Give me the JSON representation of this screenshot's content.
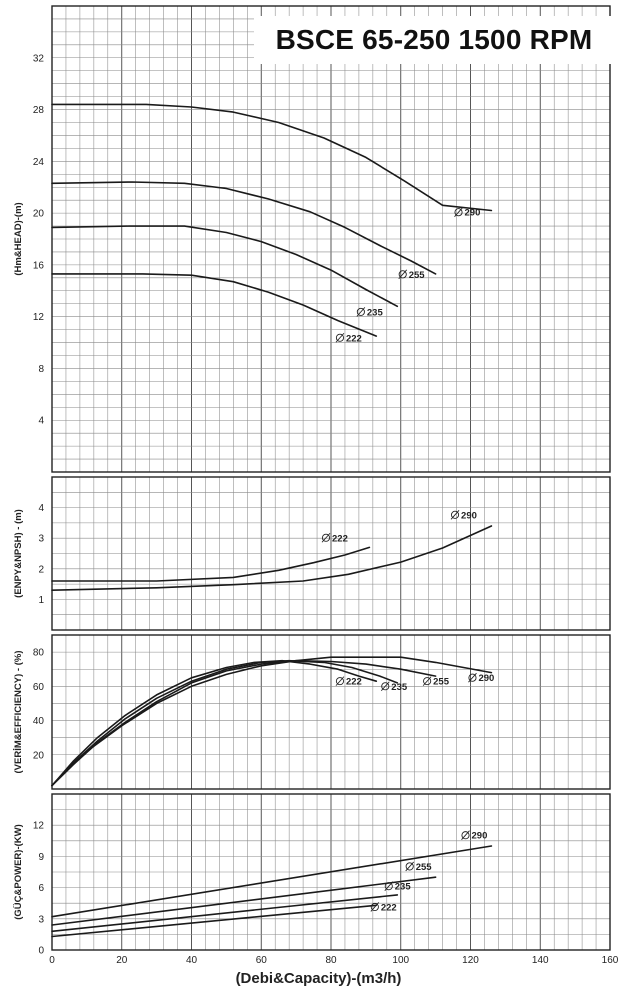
{
  "title": "BSCE 65-250 1500 RPM",
  "xlabel": "(Debi&Capacity)-(m3/h)",
  "chart_data": [
    {
      "type": "line",
      "id": "head",
      "ylabel": "(Hm&HEAD)-(m)",
      "xlim": [
        0,
        160
      ],
      "ylim": [
        0,
        36
      ],
      "xticks": [
        0,
        20,
        40,
        60,
        80,
        100,
        120,
        140,
        160
      ],
      "yticks": [
        4,
        8,
        12,
        16,
        20,
        24,
        28,
        32
      ],
      "grid": true,
      "series": [
        {
          "name": "Ø 290",
          "label": "290",
          "points": [
            [
              0,
              28.4
            ],
            [
              27,
              28.4
            ],
            [
              40,
              28.2
            ],
            [
              52,
              27.8
            ],
            [
              65,
              27.0
            ],
            [
              78,
              25.8
            ],
            [
              90,
              24.3
            ],
            [
              101,
              22.5
            ],
            [
              112,
              20.6
            ],
            [
              126,
              20.2
            ]
          ]
        },
        {
          "name": "Ø 255",
          "label": "255",
          "points": [
            [
              0,
              22.3
            ],
            [
              23,
              22.4
            ],
            [
              38,
              22.3
            ],
            [
              50,
              21.9
            ],
            [
              62,
              21.1
            ],
            [
              74,
              20.1
            ],
            [
              84,
              18.9
            ],
            [
              94,
              17.5
            ],
            [
              103,
              16.3
            ],
            [
              110,
              15.3
            ]
          ]
        },
        {
          "name": "Ø 235",
          "label": "235",
          "points": [
            [
              0,
              18.9
            ],
            [
              22,
              19.0
            ],
            [
              38,
              19.0
            ],
            [
              50,
              18.5
            ],
            [
              60,
              17.8
            ],
            [
              70,
              16.8
            ],
            [
              80,
              15.6
            ],
            [
              90,
              14.1
            ],
            [
              99,
              12.8
            ]
          ]
        },
        {
          "name": "Ø 222",
          "label": "222",
          "points": [
            [
              0,
              15.3
            ],
            [
              26,
              15.3
            ],
            [
              40,
              15.2
            ],
            [
              52,
              14.7
            ],
            [
              62,
              13.9
            ],
            [
              72,
              12.9
            ],
            [
              82,
              11.7
            ],
            [
              93,
              10.5
            ]
          ]
        }
      ],
      "annotations": [
        {
          "text": "290",
          "x": 118,
          "y": 19.8
        },
        {
          "text": "255",
          "x": 102,
          "y": 15.0
        },
        {
          "text": "235",
          "x": 90,
          "y": 12.1
        },
        {
          "text": "222",
          "x": 84,
          "y": 10.1
        }
      ]
    },
    {
      "type": "line",
      "id": "npsh",
      "ylabel": "(ENPY&NPSH) - (m)",
      "xlim": [
        0,
        160
      ],
      "ylim": [
        0,
        5
      ],
      "yticks": [
        1,
        2,
        3,
        4
      ],
      "grid": true,
      "series": [
        {
          "name": "Ø 222",
          "label": "222",
          "points": [
            [
              0,
              1.6
            ],
            [
              30,
              1.6
            ],
            [
              52,
              1.72
            ],
            [
              65,
              1.95
            ],
            [
              75,
              2.2
            ],
            [
              84,
              2.45
            ],
            [
              91,
              2.7
            ]
          ]
        },
        {
          "name": "Ø 290",
          "label": "290",
          "points": [
            [
              0,
              1.3
            ],
            [
              30,
              1.38
            ],
            [
              52,
              1.48
            ],
            [
              72,
              1.6
            ],
            [
              85,
              1.82
            ],
            [
              100,
              2.22
            ],
            [
              112,
              2.68
            ],
            [
              126,
              3.4
            ]
          ]
        }
      ],
      "annotations": [
        {
          "text": "222",
          "x": 80,
          "y": 2.9
        },
        {
          "text": "290",
          "x": 117,
          "y": 3.65
        }
      ]
    },
    {
      "type": "line",
      "id": "efficiency",
      "ylabel": "(VERİM&EFFICIENCY) - (%)",
      "xlim": [
        0,
        160
      ],
      "ylim": [
        0,
        90
      ],
      "yticks": [
        20,
        40,
        60,
        80
      ],
      "grid": true,
      "series": [
        {
          "name": "Ø 290",
          "label": "290",
          "points": [
            [
              0,
              2
            ],
            [
              5,
              13
            ],
            [
              12,
              25
            ],
            [
              20,
              37
            ],
            [
              30,
              50
            ],
            [
              40,
              60
            ],
            [
              50,
              67
            ],
            [
              60,
              72
            ],
            [
              70,
              75
            ],
            [
              80,
              77
            ],
            [
              90,
              77
            ],
            [
              100,
              77
            ],
            [
              110,
              74
            ],
            [
              118,
              71
            ],
            [
              126,
              68
            ]
          ]
        },
        {
          "name": "Ø 255",
          "label": "255",
          "points": [
            [
              0,
              2
            ],
            [
              6,
              14
            ],
            [
              13,
              27
            ],
            [
              21,
              39
            ],
            [
              30,
              51
            ],
            [
              40,
              62
            ],
            [
              50,
              69
            ],
            [
              60,
              73
            ],
            [
              70,
              75
            ],
            [
              80,
              74.5
            ],
            [
              90,
              73
            ],
            [
              100,
              70
            ],
            [
              110,
              66
            ]
          ]
        },
        {
          "name": "Ø 235",
          "label": "235",
          "points": [
            [
              0,
              2
            ],
            [
              6,
              15
            ],
            [
              13,
              28
            ],
            [
              21,
              41
            ],
            [
              30,
              53
            ],
            [
              40,
              63
            ],
            [
              50,
              70
            ],
            [
              60,
              74
            ],
            [
              68,
              75
            ],
            [
              78,
              74
            ],
            [
              86,
              71
            ],
            [
              94,
              66
            ],
            [
              99,
              62
            ]
          ]
        },
        {
          "name": "Ø 222",
          "label": "222",
          "points": [
            [
              0,
              2
            ],
            [
              6,
              16
            ],
            [
              13,
              30
            ],
            [
              21,
              43
            ],
            [
              30,
              55
            ],
            [
              40,
              65
            ],
            [
              50,
              71
            ],
            [
              58,
              74
            ],
            [
              66,
              75
            ],
            [
              74,
              73
            ],
            [
              82,
              70
            ],
            [
              88,
              66
            ],
            [
              93,
              63
            ]
          ]
        }
      ],
      "annotations": [
        {
          "text": "222",
          "x": 84,
          "y": 61
        },
        {
          "text": "235",
          "x": 97,
          "y": 58
        },
        {
          "text": "255",
          "x": 109,
          "y": 61
        },
        {
          "text": "290",
          "x": 122,
          "y": 63
        }
      ]
    },
    {
      "type": "line",
      "id": "power",
      "ylabel": "(GÜÇ&POWER)-(KW)",
      "xlim": [
        0,
        160
      ],
      "ylim": [
        0,
        15
      ],
      "xticks": [
        0,
        20,
        40,
        60,
        80,
        100,
        120,
        140,
        160
      ],
      "yticks": [
        0,
        3,
        6,
        9,
        12
      ],
      "grid": true,
      "series": [
        {
          "name": "Ø 290",
          "label": "290",
          "points": [
            [
              0,
              3.2
            ],
            [
              126,
              10.0
            ]
          ]
        },
        {
          "name": "Ø 255",
          "label": "255",
          "points": [
            [
              0,
              2.4
            ],
            [
              110,
              7.0
            ]
          ]
        },
        {
          "name": "Ø 235",
          "label": "235",
          "points": [
            [
              0,
              1.8
            ],
            [
              99,
              5.3
            ]
          ]
        },
        {
          "name": "Ø 222",
          "label": "222",
          "points": [
            [
              0,
              1.3
            ],
            [
              93,
              4.3
            ]
          ]
        }
      ],
      "annotations": [
        {
          "text": "290",
          "x": 120,
          "y": 10.7
        },
        {
          "text": "255",
          "x": 104,
          "y": 7.7
        },
        {
          "text": "235",
          "x": 98,
          "y": 5.8
        },
        {
          "text": "222",
          "x": 94,
          "y": 3.8
        }
      ]
    }
  ]
}
